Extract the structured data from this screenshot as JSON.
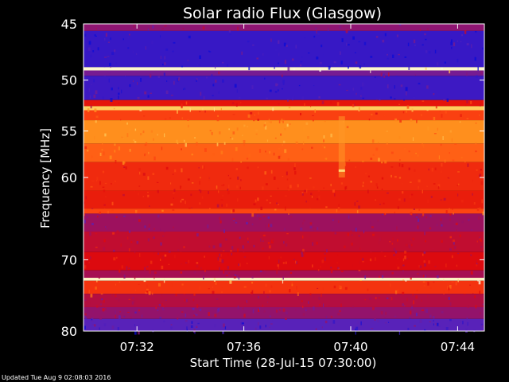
{
  "chart_data": {
    "type": "heatmap",
    "title": "Solar radio Flux (Glasgow)",
    "xlabel": "Start Time (28-Jul-15 07:30:00)",
    "ylabel": "Frequency [MHz]",
    "y_scale": "log",
    "y_inverted": true,
    "xlim": [
      "07:30:00",
      "07:45:00"
    ],
    "ylim": [
      45,
      80
    ],
    "x_ticks": [
      "07:32",
      "07:36",
      "07:40",
      "07:44"
    ],
    "y_ticks": [
      45,
      50,
      55,
      60,
      70,
      80
    ],
    "colormap": [
      "#0b0bd6",
      "#5a22b8",
      "#a0105a",
      "#e00a0a",
      "#ff4a12",
      "#ff8c1a",
      "#ffd060",
      "#fffde0"
    ],
    "spectral_bands": [
      {
        "f0": 45.0,
        "f1": 45.6,
        "level": 0.25
      },
      {
        "f0": 45.6,
        "f1": 48.8,
        "level": 0.08
      },
      {
        "f0": 48.8,
        "f1": 49.1,
        "level": 0.98
      },
      {
        "f0": 49.1,
        "f1": 49.6,
        "level": 0.2
      },
      {
        "f0": 49.6,
        "f1": 51.9,
        "level": 0.09
      },
      {
        "f0": 51.9,
        "f1": 52.5,
        "level": 0.45
      },
      {
        "f0": 52.5,
        "f1": 52.9,
        "level": 0.85
      },
      {
        "f0": 52.9,
        "f1": 53.9,
        "level": 0.55
      },
      {
        "f0": 53.9,
        "f1": 56.3,
        "level": 0.72
      },
      {
        "f0": 56.3,
        "f1": 58.3,
        "level": 0.62
      },
      {
        "f0": 58.3,
        "f1": 61.5,
        "level": 0.5
      },
      {
        "f0": 61.5,
        "f1": 63.6,
        "level": 0.47
      },
      {
        "f0": 63.6,
        "f1": 64.2,
        "level": 0.56
      },
      {
        "f0": 64.2,
        "f1": 66.4,
        "level": 0.28
      },
      {
        "f0": 66.4,
        "f1": 69.0,
        "level": 0.36
      },
      {
        "f0": 69.0,
        "f1": 71.4,
        "level": 0.42
      },
      {
        "f0": 71.4,
        "f1": 72.4,
        "level": 0.3
      },
      {
        "f0": 72.4,
        "f1": 72.8,
        "level": 0.97
      },
      {
        "f0": 72.8,
        "f1": 74.6,
        "level": 0.52
      },
      {
        "f0": 74.6,
        "f1": 76.5,
        "level": 0.33
      },
      {
        "f0": 76.5,
        "f1": 78.2,
        "level": 0.26
      },
      {
        "f0": 78.2,
        "f1": 80.0,
        "level": 0.14
      }
    ],
    "burst_time": "07:39:40"
  },
  "footer": {
    "updated": "Updated Tue Aug  9 02:08:03 2016"
  }
}
